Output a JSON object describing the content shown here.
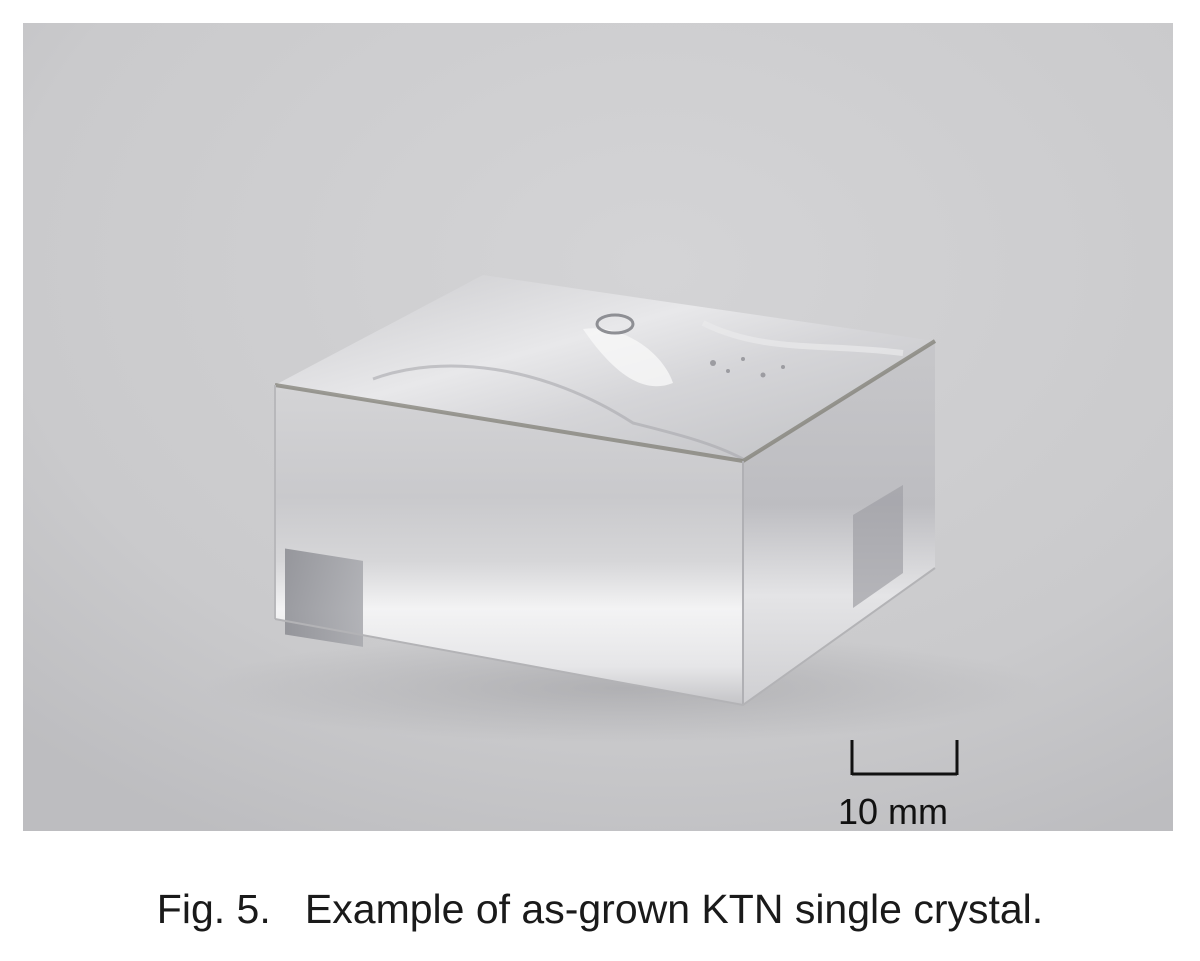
{
  "photo": {
    "subject": "KTN crystal",
    "scale_bar_label": "10 mm"
  },
  "caption": {
    "label": "Fig. 5.",
    "text": "Example of as-grown KTN single crystal."
  },
  "colors": {
    "page_background": "#ffffff",
    "photo_background": "#cfcfd1",
    "caption_text": "#1a1a1a"
  }
}
